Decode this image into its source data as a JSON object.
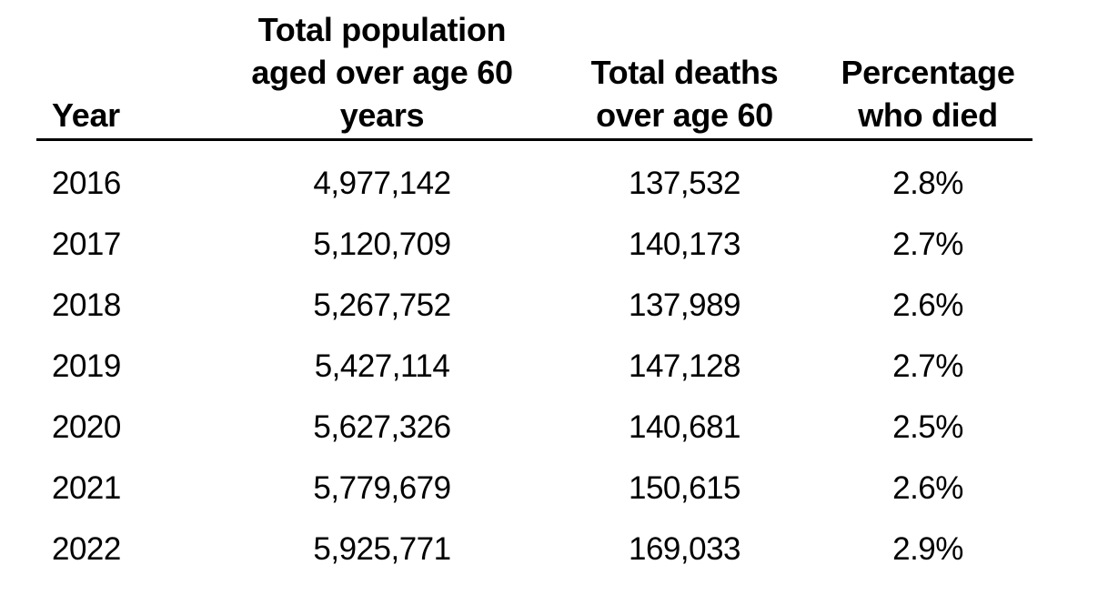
{
  "table": {
    "columns": [
      {
        "key": "year",
        "label": "Year",
        "lines": [
          "Year"
        ]
      },
      {
        "key": "population",
        "label": "Total population aged over age 60 years",
        "lines": [
          "Total population",
          "aged over age 60",
          "years"
        ]
      },
      {
        "key": "deaths",
        "label": "Total deaths over age 60",
        "lines": [
          "Total deaths",
          "over age 60"
        ]
      },
      {
        "key": "percentage",
        "label": "Percentage who died",
        "lines": [
          "Percentage",
          "who died"
        ]
      }
    ],
    "rows": [
      {
        "year": "2016",
        "population": "4,977,142",
        "deaths": "137,532",
        "percentage": "2.8%"
      },
      {
        "year": "2017",
        "population": "5,120,709",
        "deaths": "140,173",
        "percentage": "2.7%"
      },
      {
        "year": "2018",
        "population": "5,267,752",
        "deaths": "137,989",
        "percentage": "2.6%"
      },
      {
        "year": "2019",
        "population": "5,427,114",
        "deaths": "147,128",
        "percentage": "2.7%"
      },
      {
        "year": "2020",
        "population": "5,627,326",
        "deaths": "140,681",
        "percentage": "2.5%"
      },
      {
        "year": "2021",
        "population": "5,779,679",
        "deaths": "150,615",
        "percentage": "2.6%"
      },
      {
        "year": "2022",
        "population": "5,925,771",
        "deaths": "169,033",
        "percentage": "2.9%"
      }
    ]
  },
  "colors": {
    "text": "#000000",
    "background": "#ffffff",
    "header_rule": "#000000"
  },
  "chart_data": {
    "type": "table",
    "title": "",
    "columns": [
      "Year",
      "Total population aged over age 60 years",
      "Total deaths over age 60",
      "Percentage who died"
    ],
    "categories": [
      "2016",
      "2017",
      "2018",
      "2019",
      "2020",
      "2021",
      "2022"
    ],
    "series": [
      {
        "name": "Total population aged over age 60 years",
        "values": [
          4977142,
          5120709,
          5267752,
          5427114,
          5627326,
          5779679,
          5925771
        ]
      },
      {
        "name": "Total deaths over age 60",
        "values": [
          137532,
          140173,
          137989,
          147128,
          140681,
          150615,
          169033
        ]
      },
      {
        "name": "Percentage who died",
        "values": [
          2.8,
          2.7,
          2.6,
          2.7,
          2.5,
          2.6,
          2.9
        ]
      }
    ]
  }
}
